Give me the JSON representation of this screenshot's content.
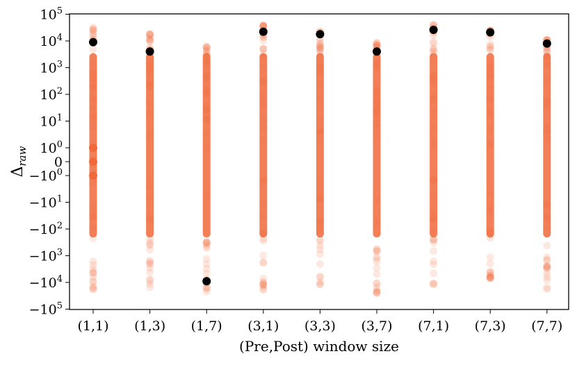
{
  "chart_data": {
    "type": "scatter",
    "xlabel": "(Pre,Post) window size",
    "ylabel_main": "Δ",
    "ylabel_sub": "raw",
    "yscale": "symlog",
    "ylim": [
      -100000,
      100000
    ],
    "grid": false,
    "categories": [
      "(1,1)",
      "(1,3)",
      "(1,7)",
      "(3,1)",
      "(3,3)",
      "(3,7)",
      "(7,1)",
      "(7,3)",
      "(7,7)"
    ],
    "yticks": [
      {
        "value": 100000,
        "base": "10",
        "exp": "5",
        "neg": false
      },
      {
        "value": 10000,
        "base": "10",
        "exp": "4",
        "neg": false
      },
      {
        "value": 1000,
        "base": "10",
        "exp": "3",
        "neg": false
      },
      {
        "value": 100,
        "base": "10",
        "exp": "2",
        "neg": false
      },
      {
        "value": 10,
        "base": "10",
        "exp": "1",
        "neg": false
      },
      {
        "value": 1,
        "base": "10",
        "exp": "0",
        "neg": false
      },
      {
        "value": 0,
        "base": "0",
        "exp": "",
        "neg": false
      },
      {
        "value": -1,
        "base": "10",
        "exp": "0",
        "neg": true
      },
      {
        "value": -10,
        "base": "10",
        "exp": "1",
        "neg": true
      },
      {
        "value": -100,
        "base": "10",
        "exp": "2",
        "neg": true
      },
      {
        "value": -1000,
        "base": "10",
        "exp": "3",
        "neg": true
      },
      {
        "value": -10000,
        "base": "10",
        "exp": "4",
        "neg": true
      },
      {
        "value": -100000,
        "base": "10",
        "exp": "5",
        "neg": true
      }
    ],
    "distributions": [
      {
        "category": "(1,1)",
        "max": 35000,
        "min": -20000,
        "has_discrete_small": true
      },
      {
        "category": "(1,3)",
        "max": 18000,
        "min": -15000,
        "has_discrete_small": false
      },
      {
        "category": "(1,7)",
        "max": 6000,
        "min": -25000,
        "has_discrete_small": false
      },
      {
        "category": "(3,1)",
        "max": 40000,
        "min": -20000,
        "has_discrete_small": false
      },
      {
        "category": "(3,3)",
        "max": 22000,
        "min": -12000,
        "has_discrete_small": false
      },
      {
        "category": "(3,7)",
        "max": 9000,
        "min": -25000,
        "has_discrete_small": false
      },
      {
        "category": "(7,1)",
        "max": 40000,
        "min": -12000,
        "has_discrete_small": false
      },
      {
        "category": "(7,3)",
        "max": 25000,
        "min": -7000,
        "has_discrete_small": false
      },
      {
        "category": "(7,7)",
        "max": 11000,
        "min": -18000,
        "has_discrete_small": false
      }
    ],
    "highlight_points": [
      {
        "category": "(1,1)",
        "value": 9000
      },
      {
        "category": "(1,3)",
        "value": 4000
      },
      {
        "category": "(1,7)",
        "value": -9000
      },
      {
        "category": "(3,1)",
        "value": 22000
      },
      {
        "category": "(3,3)",
        "value": 18000
      },
      {
        "category": "(3,7)",
        "value": 4000
      },
      {
        "category": "(7,1)",
        "value": 26000
      },
      {
        "category": "(7,3)",
        "value": 21000
      },
      {
        "category": "(7,7)",
        "value": 8000
      }
    ],
    "colors": {
      "points": "#f0693a",
      "highlight": "#000000",
      "axis": "#000000"
    }
  }
}
